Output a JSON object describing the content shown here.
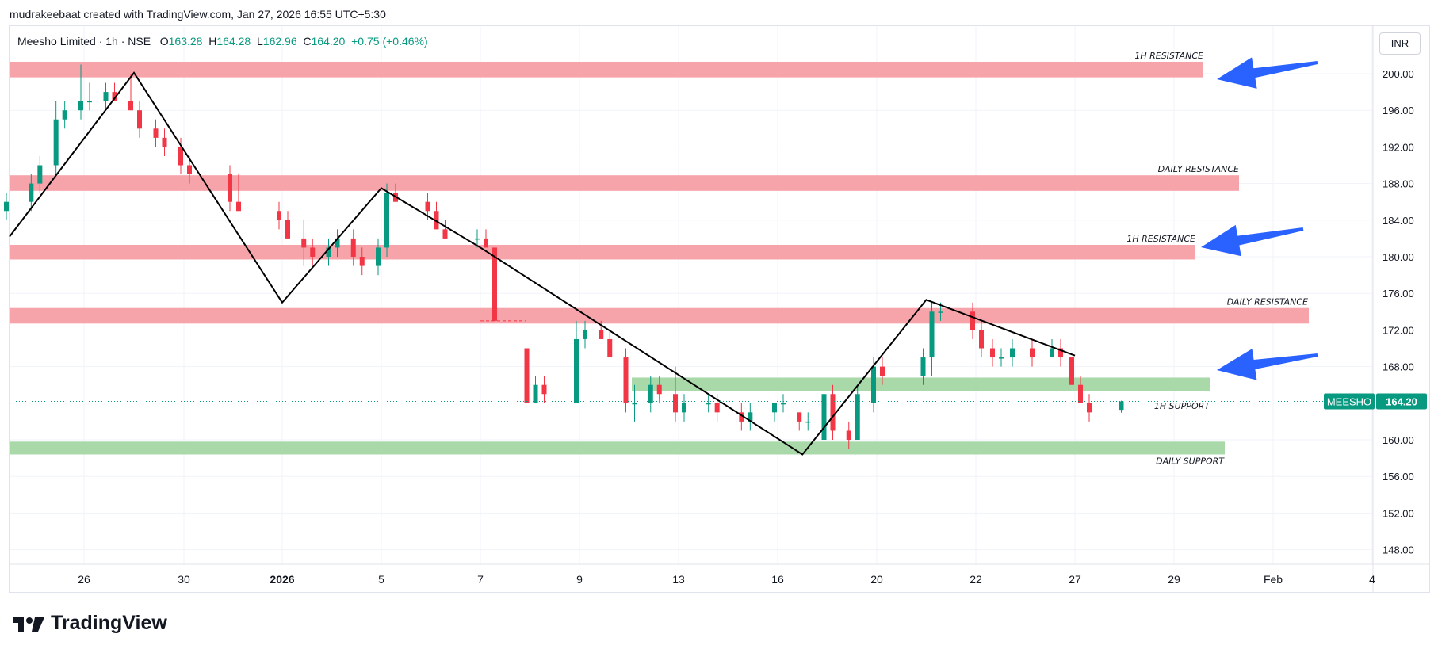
{
  "caption": "mudrakeebaat created with TradingView.com, Jan 27, 2026 16:55 UTC+5:30",
  "legend": {
    "symbol": "Meesho Limited · 1h · NSE",
    "open_label": "O",
    "open": "163.28",
    "high_label": "H",
    "high": "164.28",
    "low_label": "L",
    "low": "162.96",
    "close_label": "C",
    "close": "164.20",
    "change": "+0.75 (+0.46%)"
  },
  "currency": "INR",
  "logo_text": "TradingView",
  "icons": {
    "logo": "tradingview-logo-icon"
  },
  "colors": {
    "up": "#089981",
    "down": "#f23645",
    "resistance_zone": "#f7a3aa",
    "support_zone": "#a9d9a9",
    "trendline": "#000000",
    "arrow": "#2962ff"
  },
  "chart_data": {
    "type": "candlestick",
    "price_axis": {
      "ticks": [
        148,
        152,
        156,
        160,
        164,
        168,
        172,
        176,
        180,
        184,
        188,
        192,
        196,
        200
      ],
      "tick_labels": [
        "148.00",
        "152.00",
        "156.00",
        "160.00",
        "164.00",
        "168.00",
        "172.00",
        "176.00",
        "180.00",
        "184.00",
        "188.00",
        "192.00",
        "196.00",
        "200.00"
      ],
      "range": [
        146,
        204
      ]
    },
    "time_axis": {
      "labels": [
        "26",
        "30",
        "2026",
        "5",
        "7",
        "9",
        "13",
        "16",
        "20",
        "22",
        "27",
        "29",
        "Feb",
        "4"
      ],
      "range": [
        "Dec 24, 2025",
        "Feb 4, 2026"
      ]
    },
    "grid": true,
    "last_price": {
      "symbol": "MEESHO",
      "value": 164.2,
      "label": "164.20"
    },
    "zones": [
      {
        "type": "resistance",
        "label": "1H RESISTANCE",
        "low": 199.6,
        "high": 201.3
      },
      {
        "type": "resistance",
        "label": "DAILY RESISTANCE",
        "low": 187.2,
        "high": 188.9
      },
      {
        "type": "resistance",
        "label": "1H RESISTANCE",
        "low": 179.7,
        "high": 181.3
      },
      {
        "type": "resistance",
        "label": "DAILY RESISTANCE",
        "low": 172.7,
        "high": 174.4
      },
      {
        "type": "support",
        "label": "1H SUPPORT",
        "low": 165.3,
        "high": 166.8
      },
      {
        "type": "support",
        "label": "DAILY SUPPORT",
        "low": 158.4,
        "high": 159.8
      }
    ],
    "trendlines": [
      {
        "points": [
          [
            "Dec 23",
            182.2
          ],
          [
            "Dec 28",
            200.1
          ],
          [
            "Jan 1",
            175.0
          ],
          [
            "Jan 5",
            187.5
          ],
          [
            "Jan 7",
            181.0
          ],
          [
            "Jan 17",
            158.4
          ],
          [
            "Jan 21",
            175.3
          ],
          [
            "Jan 27",
            169.2
          ]
        ]
      }
    ],
    "candles": [
      {
        "date": "Dec 23",
        "o": 185,
        "h": 187,
        "l": 184,
        "c": 186
      },
      {
        "date": "Dec 24",
        "o": 186,
        "h": 189,
        "l": 185,
        "c": 188
      },
      {
        "date": "Dec 24",
        "o": 188,
        "h": 191,
        "l": 187,
        "c": 190
      },
      {
        "date": "Dec 25",
        "o": 190,
        "h": 197,
        "l": 189,
        "c": 195
      },
      {
        "date": "Dec 25",
        "o": 195,
        "h": 197,
        "l": 194,
        "c": 196
      },
      {
        "date": "Dec 26",
        "o": 196,
        "h": 201,
        "l": 195,
        "c": 197
      },
      {
        "date": "Dec 26",
        "o": 197,
        "h": 199,
        "l": 196,
        "c": 197
      },
      {
        "date": "Dec 27",
        "o": 197,
        "h": 199,
        "l": 196,
        "c": 198
      },
      {
        "date": "Dec 27",
        "o": 198,
        "h": 199,
        "l": 197,
        "c": 197
      },
      {
        "date": "Dec 28",
        "o": 197,
        "h": 200,
        "l": 196,
        "c": 196
      },
      {
        "date": "Dec 28",
        "o": 196,
        "h": 197,
        "l": 193,
        "c": 194
      },
      {
        "date": "Dec 29",
        "o": 194,
        "h": 195,
        "l": 192,
        "c": 193
      },
      {
        "date": "Dec 29",
        "o": 193,
        "h": 194,
        "l": 191,
        "c": 192
      },
      {
        "date": "Dec 30",
        "o": 192,
        "h": 193,
        "l": 189,
        "c": 190
      },
      {
        "date": "Dec 30",
        "o": 190,
        "h": 191,
        "l": 188,
        "c": 189
      },
      {
        "date": "Dec 31",
        "o": 189,
        "h": 190,
        "l": 185,
        "c": 186
      },
      {
        "date": "Dec 31",
        "o": 186,
        "h": 189,
        "l": 185,
        "c": 185
      },
      {
        "date": "Jan 1",
        "o": 185,
        "h": 186,
        "l": 183,
        "c": 184
      },
      {
        "date": "Jan 1",
        "o": 184,
        "h": 185,
        "l": 182,
        "c": 182
      },
      {
        "date": "Jan 2",
        "o": 182,
        "h": 184,
        "l": 179,
        "c": 181
      },
      {
        "date": "Jan 2",
        "o": 181,
        "h": 182,
        "l": 179,
        "c": 180
      },
      {
        "date": "Jan 3",
        "o": 180,
        "h": 182,
        "l": 179,
        "c": 181
      },
      {
        "date": "Jan 3",
        "o": 181,
        "h": 183,
        "l": 180,
        "c": 182
      },
      {
        "date": "Jan 4",
        "o": 182,
        "h": 183,
        "l": 179,
        "c": 180
      },
      {
        "date": "Jan 4",
        "o": 180,
        "h": 181,
        "l": 178,
        "c": 179
      },
      {
        "date": "Jan 5",
        "o": 179,
        "h": 182,
        "l": 178,
        "c": 181
      },
      {
        "date": "Jan 5",
        "o": 181,
        "h": 188,
        "l": 180,
        "c": 187
      },
      {
        "date": "Jan 5",
        "o": 187,
        "h": 188,
        "l": 186,
        "c": 186
      },
      {
        "date": "Jan 6",
        "o": 186,
        "h": 187,
        "l": 184,
        "c": 185
      },
      {
        "date": "Jan 6",
        "o": 185,
        "h": 186,
        "l": 183,
        "c": 183
      },
      {
        "date": "Jan 6",
        "o": 183,
        "h": 184,
        "l": 182,
        "c": 182
      },
      {
        "date": "Jan 7",
        "o": 182,
        "h": 183,
        "l": 181,
        "c": 182
      },
      {
        "date": "Jan 7",
        "o": 182,
        "h": 183,
        "l": 181,
        "c": 181
      },
      {
        "date": "Jan 7",
        "o": 181,
        "h": 181,
        "l": 173,
        "c": 173
      },
      {
        "date": "Jan 8",
        "o": 170,
        "h": 170,
        "l": 164,
        "c": 164
      },
      {
        "date": "Jan 8",
        "o": 164,
        "h": 167,
        "l": 164,
        "c": 166
      },
      {
        "date": "Jan 8",
        "o": 166,
        "h": 167,
        "l": 164,
        "c": 165
      },
      {
        "date": "Jan 9",
        "o": 164,
        "h": 173,
        "l": 164,
        "c": 171
      },
      {
        "date": "Jan 9",
        "o": 171,
        "h": 173,
        "l": 170,
        "c": 172
      },
      {
        "date": "Jan 10",
        "o": 172,
        "h": 173,
        "l": 171,
        "c": 171
      },
      {
        "date": "Jan 10",
        "o": 171,
        "h": 172,
        "l": 169,
        "c": 169
      },
      {
        "date": "Jan 11",
        "o": 169,
        "h": 170,
        "l": 163,
        "c": 164
      },
      {
        "date": "Jan 11",
        "o": 164,
        "h": 166,
        "l": 162,
        "c": 164
      },
      {
        "date": "Jan 12",
        "o": 164,
        "h": 167,
        "l": 163,
        "c": 166
      },
      {
        "date": "Jan 12",
        "o": 166,
        "h": 167,
        "l": 164,
        "c": 165
      },
      {
        "date": "Jan 13",
        "o": 165,
        "h": 168,
        "l": 162,
        "c": 163
      },
      {
        "date": "Jan 13",
        "o": 163,
        "h": 165,
        "l": 162,
        "c": 164
      },
      {
        "date": "Jan 14",
        "o": 164,
        "h": 165,
        "l": 163,
        "c": 164
      },
      {
        "date": "Jan 14",
        "o": 164,
        "h": 165,
        "l": 162,
        "c": 163
      },
      {
        "date": "Jan 15",
        "o": 163,
        "h": 164,
        "l": 161,
        "c": 162
      },
      {
        "date": "Jan 15",
        "o": 162,
        "h": 164,
        "l": 161,
        "c": 163
      },
      {
        "date": "Jan 16",
        "o": 163,
        "h": 164,
        "l": 162,
        "c": 164
      },
      {
        "date": "Jan 16",
        "o": 164,
        "h": 165,
        "l": 163,
        "c": 164
      },
      {
        "date": "Jan 17",
        "o": 163,
        "h": 163,
        "l": 161,
        "c": 162
      },
      {
        "date": "Jan 17",
        "o": 162,
        "h": 163,
        "l": 161,
        "c": 162
      },
      {
        "date": "Jan 18",
        "o": 160,
        "h": 166,
        "l": 159,
        "c": 165
      },
      {
        "date": "Jan 18",
        "o": 165,
        "h": 166,
        "l": 160,
        "c": 161
      },
      {
        "date": "Jan 19",
        "o": 161,
        "h": 162,
        "l": 159,
        "c": 160
      },
      {
        "date": "Jan 19",
        "o": 160,
        "h": 166,
        "l": 160,
        "c": 165
      },
      {
        "date": "Jan 20",
        "o": 164,
        "h": 169,
        "l": 163,
        "c": 168
      },
      {
        "date": "Jan 20",
        "o": 168,
        "h": 169,
        "l": 166,
        "c": 167
      },
      {
        "date": "Jan 21",
        "o": 167,
        "h": 170,
        "l": 166,
        "c": 169
      },
      {
        "date": "Jan 21",
        "o": 169,
        "h": 175,
        "l": 167,
        "c": 174
      },
      {
        "date": "Jan 21",
        "o": 174,
        "h": 175,
        "l": 173,
        "c": 174
      },
      {
        "date": "Jan 22",
        "o": 174,
        "h": 175,
        "l": 171,
        "c": 172
      },
      {
        "date": "Jan 22",
        "o": 172,
        "h": 173,
        "l": 169,
        "c": 170
      },
      {
        "date": "Jan 23",
        "o": 170,
        "h": 171,
        "l": 168,
        "c": 169
      },
      {
        "date": "Jan 23",
        "o": 169,
        "h": 170,
        "l": 168,
        "c": 169
      },
      {
        "date": "Jan 24",
        "o": 169,
        "h": 171,
        "l": 168,
        "c": 170
      },
      {
        "date": "Jan 25",
        "o": 170,
        "h": 171,
        "l": 168,
        "c": 169
      },
      {
        "date": "Jan 26",
        "o": 169,
        "h": 171,
        "l": 169,
        "c": 170
      },
      {
        "date": "Jan 26",
        "o": 170,
        "h": 171,
        "l": 168,
        "c": 169
      },
      {
        "date": "Jan 27",
        "o": 169,
        "h": 169,
        "l": 166,
        "c": 166
      },
      {
        "date": "Jan 27",
        "o": 166,
        "h": 167,
        "l": 164,
        "c": 164
      },
      {
        "date": "Jan 27",
        "o": 164,
        "h": 165,
        "l": 162,
        "c": 163
      },
      {
        "date": "Jan 28",
        "o": 163.28,
        "h": 164.28,
        "l": 162.96,
        "c": 164.2
      }
    ]
  }
}
